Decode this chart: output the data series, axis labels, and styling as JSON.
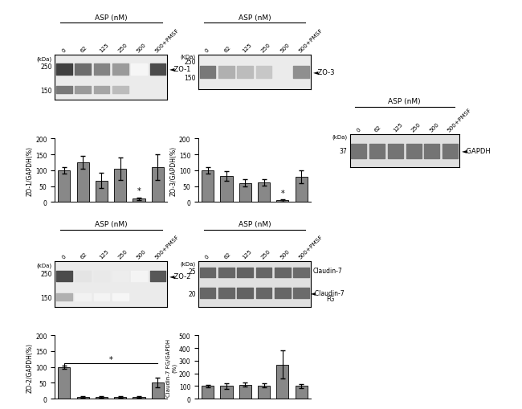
{
  "bg_color": "#ffffff",
  "bar_color": "#888888",
  "bar_edge_color": "#000000",
  "asp_labels": [
    "0",
    "62",
    "125",
    "250",
    "500",
    "500+PMSF"
  ],
  "zo1_bar_values": [
    100,
    125,
    68,
    105,
    10,
    110
  ],
  "zo1_bar_errors": [
    10,
    20,
    25,
    35,
    5,
    40
  ],
  "zo1_star_idx": 4,
  "zo3_bar_values": [
    100,
    83,
    60,
    62,
    5,
    80
  ],
  "zo3_bar_errors": [
    10,
    15,
    12,
    10,
    3,
    20
  ],
  "zo3_star_idx": 4,
  "zo2_bar_values": [
    100,
    5,
    5,
    5,
    5,
    52
  ],
  "zo2_bar_errors": [
    5,
    2,
    2,
    2,
    2,
    15
  ],
  "claudin7_bar_values": [
    100,
    100,
    110,
    105,
    270,
    100
  ],
  "claudin7_bar_errors": [
    10,
    20,
    15,
    15,
    110,
    15
  ],
  "zo1_bands": [
    0.85,
    0.65,
    0.55,
    0.45,
    0.04,
    0.8
  ],
  "zo1_bands_low": [
    0.6,
    0.45,
    0.4,
    0.3,
    0.0,
    0.0
  ],
  "zo3_bands": [
    0.6,
    0.35,
    0.3,
    0.25,
    0.0,
    0.5
  ],
  "zo2_bands": [
    0.8,
    0.12,
    0.1,
    0.08,
    0.05,
    0.75
  ],
  "zo2_bands_low": [
    0.35,
    0.06,
    0.05,
    0.04,
    0.0,
    0.0
  ],
  "gapdh_bands": [
    0.62,
    0.62,
    0.62,
    0.62,
    0.62,
    0.62
  ],
  "cl7_upper_bands": [
    0.68,
    0.68,
    0.7,
    0.68,
    0.68,
    0.66
  ],
  "cl7_lower_bands": [
    0.68,
    0.68,
    0.7,
    0.68,
    0.68,
    0.66
  ]
}
